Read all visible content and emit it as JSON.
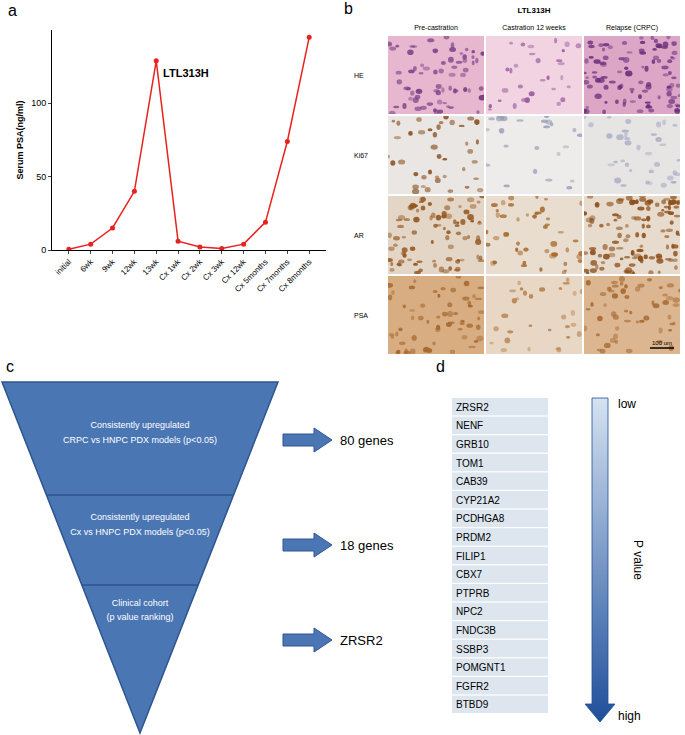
{
  "chart_data": {
    "type": "line",
    "title": "LTL313H",
    "categories": [
      "initial",
      "6wk",
      "9wk",
      "12wk",
      "13wk",
      "Cx 1wk",
      "Cx 2wk",
      "Cx 3wk",
      "Cx 12wk",
      "Cx 5months",
      "Cx 7months",
      "Cx 8months"
    ],
    "values": [
      0.5,
      4,
      15,
      40,
      129,
      6,
      2,
      1,
      4,
      19,
      74,
      145
    ],
    "y_label": "Serum PSA(ng/ml)",
    "color": "#e8231f",
    "marker": "circle",
    "ylim": [
      0,
      150
    ],
    "yticks": [
      0,
      50,
      100
    ],
    "grid": false
  },
  "panel_labels": [
    "a",
    "b",
    "c",
    "d"
  ],
  "histology": {
    "title": "LTL313H",
    "columns": [
      "Pre-castration",
      "Castration 12 weeks",
      "Relapse (CRPC)"
    ],
    "rows": [
      "HE",
      "Ki67",
      "AR",
      "PSA"
    ],
    "scale_bar": "100 um"
  },
  "funnel": {
    "steps": [
      {
        "lines": [
          "Consistently upregulated",
          "CRPC vs HNPC PDX models (p<0.05)"
        ],
        "result": "80 genes"
      },
      {
        "lines": [
          "Consistently upregulated",
          "Cx vs HNPC PDX models (p<0.05)"
        ],
        "result": "18 genes"
      },
      {
        "lines": [
          "Clinical cohort",
          "(p value ranking)"
        ],
        "result": "ZRSR2"
      }
    ]
  },
  "gene_list": {
    "genes": [
      "ZRSR2",
      "NENF",
      "GRB10",
      "TOM1",
      "CAB39",
      "CYP21A2",
      "PCDHGA8",
      "PRDM2",
      "FILIP1",
      "CBX7",
      "PTPRB",
      "NPC2",
      "FNDC3B",
      "SSBP3",
      "POMGNT1",
      "FGFR2",
      "BTBD9"
    ],
    "axis_label": "P value",
    "top": "low",
    "bottom": "high"
  }
}
